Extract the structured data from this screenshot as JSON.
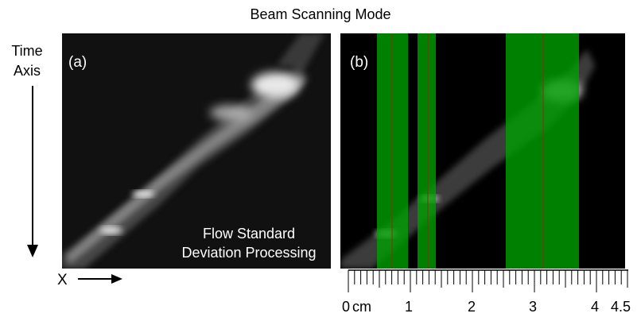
{
  "title": "Beam Scanning Mode",
  "time_axis": {
    "label_line1": "Time",
    "label_line2": "Axis"
  },
  "panel_a": {
    "label": "(a)",
    "caption_line1": "Flow Standard",
    "caption_line2": "Deviation Processing"
  },
  "panel_b": {
    "label": "(b)",
    "highlight_color": "#00a000",
    "marker_line_color": "#8b2d10"
  },
  "x_axis": {
    "label": "X"
  },
  "scale": {
    "unit": "cm",
    "tick_labels": [
      "0",
      "1",
      "2",
      "3",
      "4",
      "4.5"
    ],
    "zero_with_unit": "0 cm"
  },
  "colors": {
    "background": "#ffffff",
    "image_background": "#111111"
  }
}
